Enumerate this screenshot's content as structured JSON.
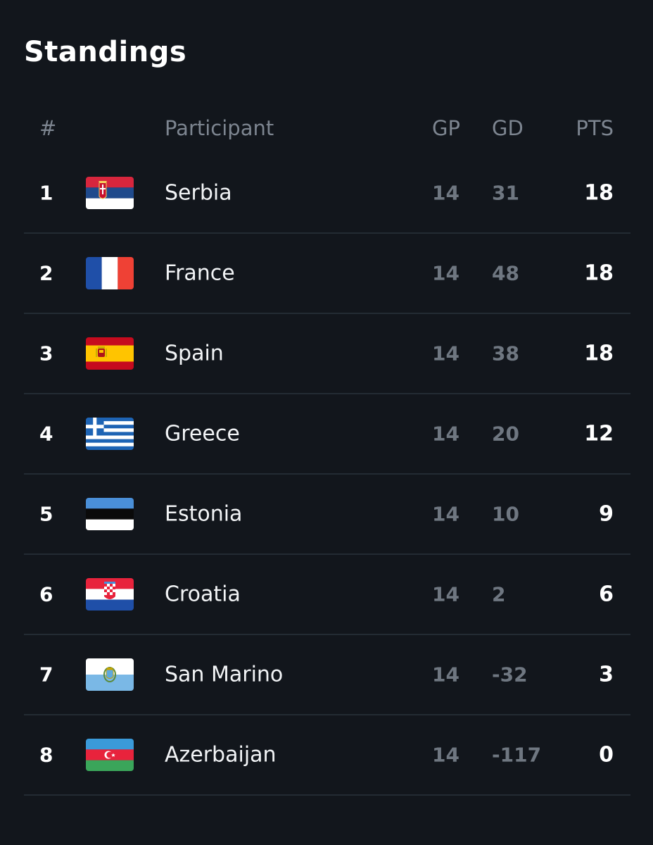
{
  "title": "Standings",
  "columns": {
    "rank": "#",
    "participant": "Participant",
    "gp": "GP",
    "gd": "GD",
    "pts": "PTS"
  },
  "rows": [
    {
      "rank": "1",
      "name": "Serbia",
      "gp": "14",
      "gd": "31",
      "pts": "18",
      "flag": "serbia-flag"
    },
    {
      "rank": "2",
      "name": "France",
      "gp": "14",
      "gd": "48",
      "pts": "18",
      "flag": "france-flag"
    },
    {
      "rank": "3",
      "name": "Spain",
      "gp": "14",
      "gd": "38",
      "pts": "18",
      "flag": "spain-flag"
    },
    {
      "rank": "4",
      "name": "Greece",
      "gp": "14",
      "gd": "20",
      "pts": "12",
      "flag": "greece-flag"
    },
    {
      "rank": "5",
      "name": "Estonia",
      "gp": "14",
      "gd": "10",
      "pts": "9",
      "flag": "estonia-flag"
    },
    {
      "rank": "6",
      "name": "Croatia",
      "gp": "14",
      "gd": "2",
      "pts": "6",
      "flag": "croatia-flag"
    },
    {
      "rank": "7",
      "name": "San Marino",
      "gp": "14",
      "gd": "-32",
      "pts": "3",
      "flag": "san-marino-flag"
    },
    {
      "rank": "8",
      "name": "Azerbaijan",
      "gp": "14",
      "gd": "-117",
      "pts": "0",
      "flag": "azerbaijan-flag"
    }
  ],
  "colors": {
    "background": "#12161c",
    "muted_text": "#7d8590",
    "divider": "#232b33"
  }
}
